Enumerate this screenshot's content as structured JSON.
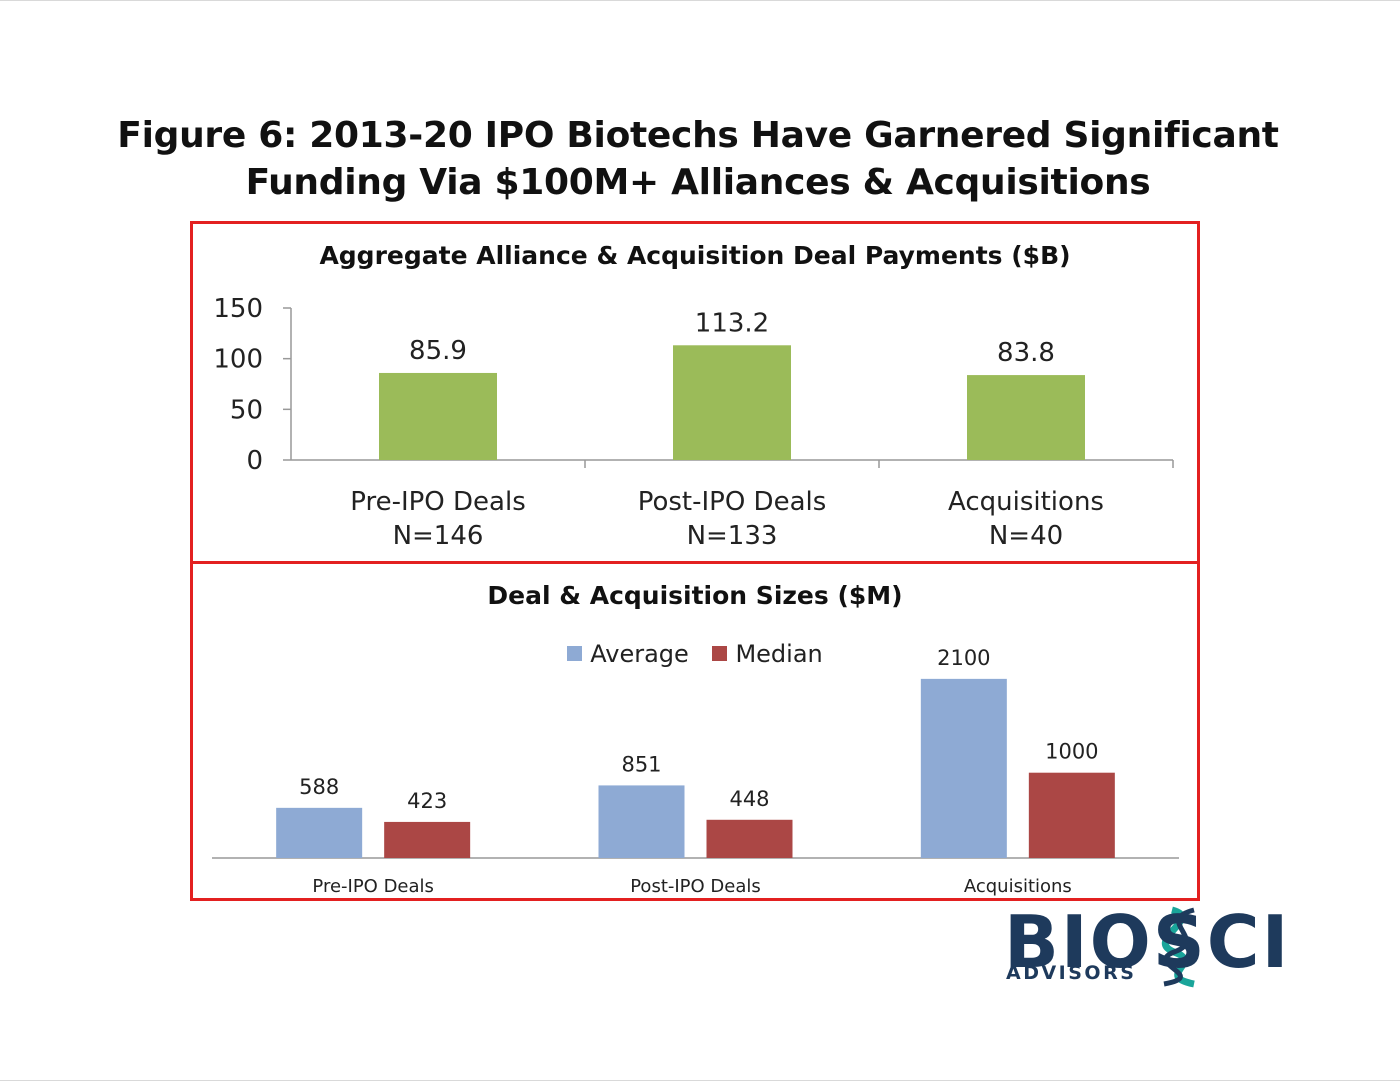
{
  "figure_title_line1": "Figure 6:  2013-20 IPO Biotechs Have Garnered Significant",
  "figure_title_line2": "Funding Via $100M+ Alliances & Acquisitions",
  "colors": {
    "panel_border": "#e32020",
    "bar_green": "#9bbb59",
    "bar_average": "#8eaad4",
    "bar_median": "#ab4745",
    "logo_dark": "#1e3a5c",
    "logo_teal": "#1aa59a"
  },
  "chart_data": [
    {
      "type": "bar",
      "title": "Aggregate Alliance & Acquisition Deal Payments ($B)",
      "categories": [
        {
          "line1": "Pre-IPO Deals",
          "line2": "N=146"
        },
        {
          "line1": "Post-IPO Deals",
          "line2": "N=133"
        },
        {
          "line1": "Acquisitions",
          "line2": "N=40"
        }
      ],
      "values": [
        85.9,
        113.2,
        83.8
      ],
      "data_labels": [
        "85.9",
        "113.2",
        "83.8"
      ],
      "yticks": [
        "0",
        "50",
        "100",
        "150"
      ],
      "ylim": [
        0,
        150
      ],
      "grid": false,
      "legend": "none"
    },
    {
      "type": "bar",
      "title": "Deal & Acquisition Sizes ($M)",
      "categories": [
        "Pre-IPO Deals",
        "Post-IPO Deals",
        "Acquisitions"
      ],
      "series": [
        {
          "name": "Average",
          "values": [
            588,
            851,
            2100
          ]
        },
        {
          "name": "Median",
          "values": [
            423,
            448,
            1000
          ]
        }
      ],
      "grid": false,
      "legend": "top-center"
    }
  ],
  "logo": {
    "text": "BIOSCI",
    "subtitle": "ADVISORS"
  }
}
